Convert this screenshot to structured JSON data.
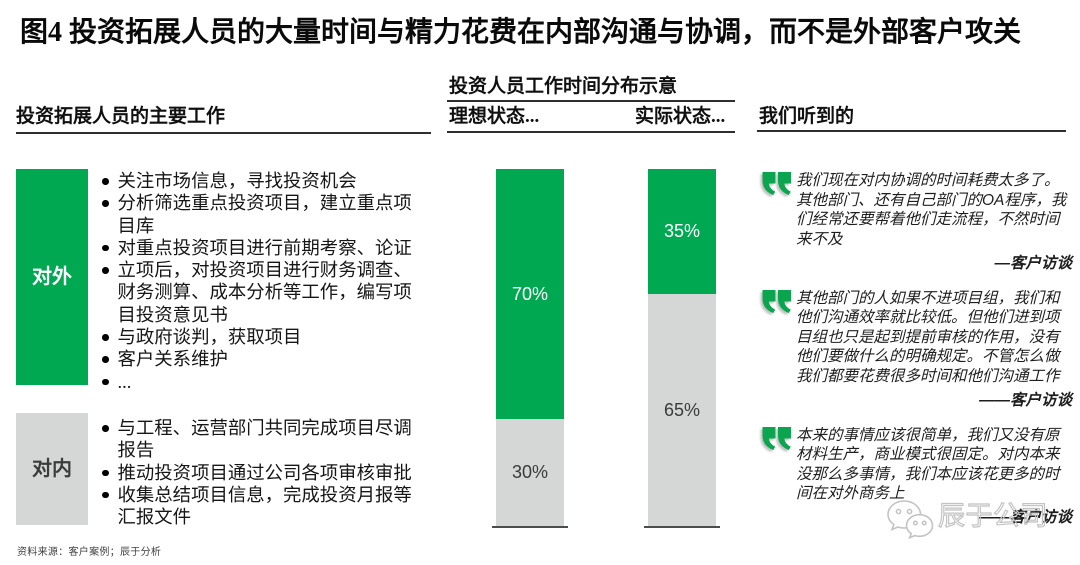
{
  "title": "图4 投资拓展人员的大量时间与精力花费在内部沟通与协调，而不是外部客户攻关",
  "colors": {
    "green": "#00a851",
    "gray": "#d5d7d7",
    "quote_mark_green": "#0aa54e",
    "baseline": "#4c4c4c",
    "watermark_gray": "#c3c3c3"
  },
  "left_panel": {
    "header": "投资拓展人员的主要工作",
    "groups": [
      {
        "label": "对外",
        "color": "#00a851",
        "label_color": "#ffffff",
        "items": [
          "关注市场信息，寻找投资机会",
          "分析筛选重点投资项目，建立重点项目库",
          "对重点投资项目进行前期考察、论证",
          "立项后，对投资项目进行财务调查、财务测算、成本分析等工作，编写项目投资意见书",
          "与政府谈判，获取项目",
          "客户关系维护",
          "..."
        ]
      },
      {
        "label": "对内",
        "color": "#d5d7d7",
        "label_color": "#3c3c3c",
        "items": [
          "与工程、运营部门共同完成项目尽调报告",
          "推动投资项目通过公司各项审核审批",
          "收集总结项目信息，完成投资月报等汇报文件"
        ]
      }
    ]
  },
  "chart_data": {
    "type": "bar",
    "stacked": true,
    "unit": "%",
    "title": "投资人员工作时间分布示意",
    "categories": [
      "理想状态...",
      "实际状态..."
    ],
    "series": [
      {
        "name": "对外工作",
        "color": "#00a851",
        "label_color": "#ffffff",
        "values": [
          70,
          35
        ]
      },
      {
        "name": "对内工作",
        "color": "#d5d7d7",
        "label_color": "#3a3a3a",
        "values": [
          30,
          65
        ]
      }
    ],
    "ylim": [
      0,
      100
    ],
    "grid": false,
    "legend": false,
    "value_label_format": "{value}%"
  },
  "quotes_panel": {
    "header": "我们听到的",
    "quotes": [
      {
        "text": "我们现在对内协调的时间耗费太多了。其他部门、还有自己部门的OA程序，我们经常还要帮着他们走流程，不然时间来不及",
        "attribution": "—客户访谈"
      },
      {
        "text": "其他部门的人如果不进项目组，我们和他们沟通效率就比较低。但他们进到项目组也只是起到提前审核的作用，没有他们要做什么的明确规定。不管怎么做我们都要花费很多时间和他们沟通工作",
        "attribution": "——客户访谈"
      },
      {
        "text": "本来的事情应该很简单，我们又没有原材料生产，商业模式很固定。对内本来没那么多事情，我们本应该花更多的时间在对外商务上",
        "attribution": "——客户访谈"
      }
    ]
  },
  "watermark": {
    "text": "辰于公司",
    "icon": "wechat-logo-icon"
  },
  "footer": {
    "source": "资料来源：客户案例；辰于分析"
  }
}
